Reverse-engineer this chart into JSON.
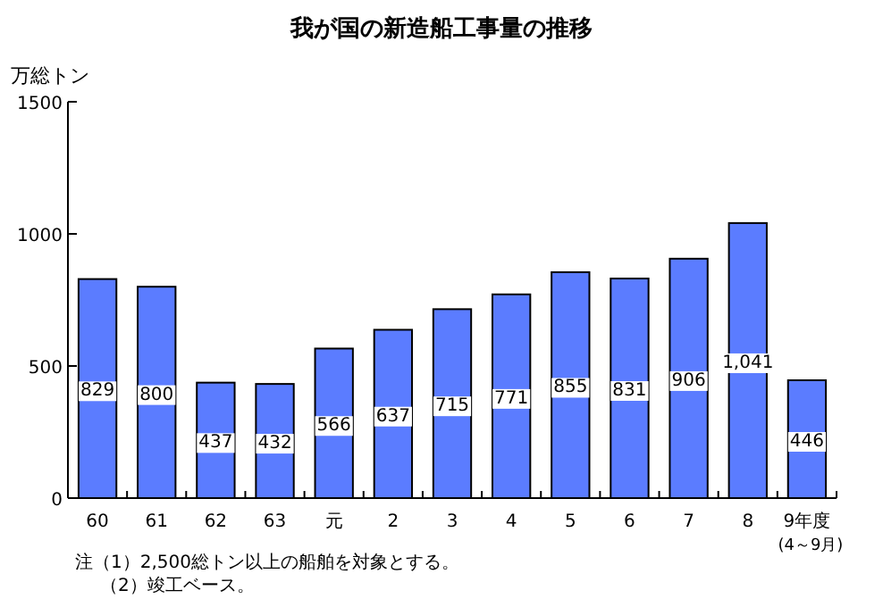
{
  "chart_data": {
    "type": "bar",
    "title": "我が国の新造船工事量の推移",
    "ylabel": "万総トン",
    "categories": [
      "60",
      "61",
      "62",
      "63",
      "元",
      "2",
      "3",
      "4",
      "5",
      "6",
      "7",
      "8",
      "9年度\n(4～9月)"
    ],
    "values": [
      829,
      800,
      437,
      432,
      566,
      637,
      715,
      771,
      855,
      831,
      906,
      1041,
      446
    ],
    "value_labels": [
      "829",
      "800",
      "437",
      "432",
      "566",
      "637",
      "715",
      "771",
      "855",
      "831",
      "906",
      "1,041",
      "446"
    ],
    "color": "#5b7cff",
    "ylim": [
      0,
      1500
    ],
    "yticks": [
      0,
      500,
      1000,
      1500
    ],
    "grid": false,
    "annotations": [
      "注（1）2,500総トン以上の船舶を対象とする。",
      "（2）竣工ベース。"
    ]
  }
}
